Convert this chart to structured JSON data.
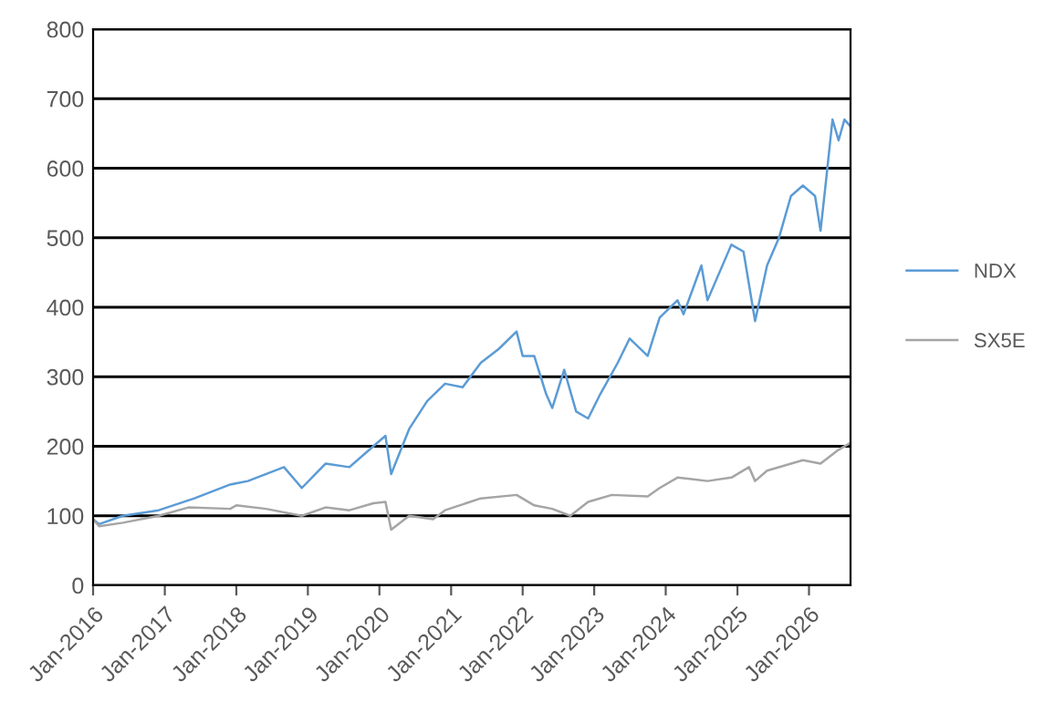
{
  "chart_data": {
    "type": "line",
    "xlim": [
      "2016-01-01",
      "2026-08-01"
    ],
    "xticks": [
      {
        "value": "2016-01-01",
        "label": "Jan-2016"
      },
      {
        "value": "2017-01-01",
        "label": "Jan-2017"
      },
      {
        "value": "2018-01-01",
        "label": "Jan-2018"
      },
      {
        "value": "2019-01-01",
        "label": "Jan-2019"
      },
      {
        "value": "2020-01-01",
        "label": "Jan-2020"
      },
      {
        "value": "2021-01-01",
        "label": "Jan-2021"
      },
      {
        "value": "2022-01-01",
        "label": "Jan-2022"
      },
      {
        "value": "2023-01-01",
        "label": "Jan-2023"
      },
      {
        "value": "2024-01-01",
        "label": "Jan-2024"
      },
      {
        "value": "2025-01-01",
        "label": "Jan-2025"
      },
      {
        "value": "2026-01-01",
        "label": "Jan-2026"
      }
    ],
    "ylim": [
      0,
      800
    ],
    "yticks": [
      0,
      100,
      200,
      300,
      400,
      500,
      600,
      700,
      800
    ],
    "grid": "y",
    "legend": "right",
    "marker": "none",
    "line_style": "solid",
    "series": [
      {
        "name": "NDX",
        "color": "#5b9bd5",
        "x": [
          "2016-01",
          "2016-02",
          "2016-06",
          "2016-12",
          "2017-06",
          "2017-12",
          "2018-03",
          "2018-09",
          "2018-12",
          "2019-04",
          "2019-08",
          "2019-12",
          "2020-02",
          "2020-03",
          "2020-06",
          "2020-09",
          "2020-12",
          "2021-03",
          "2021-06",
          "2021-09",
          "2021-12",
          "2022-01",
          "2022-03",
          "2022-05",
          "2022-06",
          "2022-08",
          "2022-10",
          "2022-12",
          "2023-02",
          "2023-05",
          "2023-07",
          "2023-10",
          "2023-12",
          "2024-03",
          "2024-04",
          "2024-07",
          "2024-08",
          "2024-12",
          "2025-02",
          "2025-04",
          "2025-06",
          "2025-08",
          "2025-10",
          "2025-12",
          "2026-02",
          "2026-03",
          "2026-04",
          "2026-05",
          "2026-06",
          "2026-07",
          "2026-08"
        ],
        "values": [
          95,
          88,
          100,
          108,
          125,
          145,
          150,
          170,
          140,
          175,
          170,
          200,
          215,
          160,
          225,
          265,
          290,
          285,
          320,
          340,
          365,
          330,
          330,
          275,
          255,
          310,
          250,
          240,
          275,
          320,
          355,
          330,
          385,
          410,
          390,
          460,
          410,
          490,
          480,
          380,
          460,
          500,
          560,
          575,
          560,
          510,
          590,
          670,
          640,
          670,
          660
        ]
      },
      {
        "name": "SX5E",
        "color": "#a5a5a5",
        "x": [
          "2016-01",
          "2016-02",
          "2016-06",
          "2016-12",
          "2017-05",
          "2017-12",
          "2018-01",
          "2018-06",
          "2018-12",
          "2019-04",
          "2019-08",
          "2019-12",
          "2020-02",
          "2020-03",
          "2020-06",
          "2020-10",
          "2020-12",
          "2021-06",
          "2021-12",
          "2022-03",
          "2022-06",
          "2022-09",
          "2022-12",
          "2023-04",
          "2023-10",
          "2023-12",
          "2024-03",
          "2024-08",
          "2024-12",
          "2025-03",
          "2025-04",
          "2025-06",
          "2025-12",
          "2026-03",
          "2026-06",
          "2026-08"
        ],
        "values": [
          95,
          85,
          90,
          100,
          112,
          110,
          115,
          110,
          100,
          112,
          108,
          118,
          120,
          80,
          100,
          95,
          108,
          125,
          130,
          115,
          110,
          100,
          120,
          130,
          128,
          140,
          155,
          150,
          155,
          170,
          150,
          165,
          180,
          175,
          195,
          205
        ]
      }
    ]
  }
}
